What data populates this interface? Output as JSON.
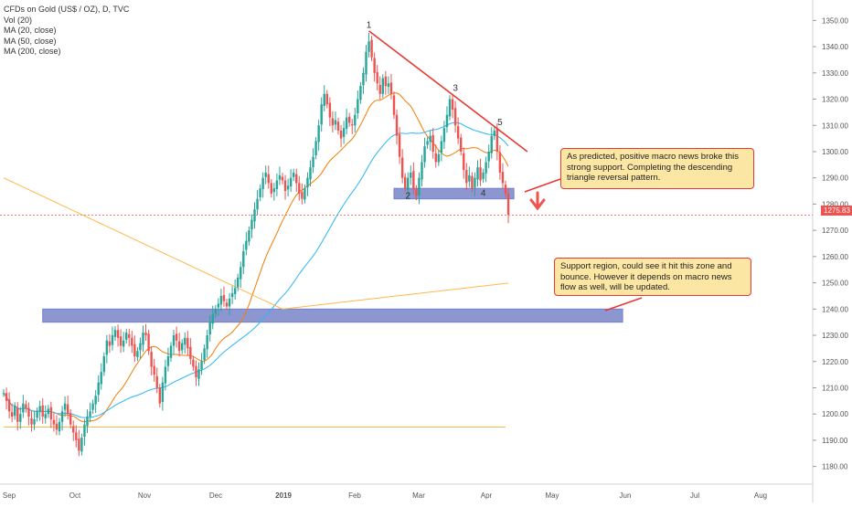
{
  "legend": {
    "symbol": "CFDs on Gold (US$ / OZ), D, TVC",
    "vol": "Vol (20)",
    "ma20": "MA (20, close)",
    "ma50": "MA (50, close)",
    "ma200": "MA (200, close)"
  },
  "notes": {
    "top": "As predicted, positive macro news broke this strong support. Completing the descending triangle reversal pattern.",
    "bottom": "Support region, could see it hit this zone and bounce. However it depends on macro news flow as well, will be updated."
  },
  "price_tag": "1275.83",
  "colors": {
    "up": "#26a69a",
    "down": "#ef5350",
    "ma20": "#f57c00",
    "ma50": "#29b6f6",
    "ma200": "#ffb74d",
    "zone": "#7986cb",
    "trendline": "#e53935",
    "note_bg": "#fce6a4"
  },
  "chart_data": {
    "type": "candlestick",
    "y_axis_ticks": [
      "1350.00",
      "1340.00",
      "1330.00",
      "1320.00",
      "1310.00",
      "1300.00",
      "1290.00",
      "1280.00",
      "1270.00",
      "1260.00",
      "1250.00",
      "1240.00",
      "1230.00",
      "1220.00",
      "1210.00",
      "1200.00",
      "1190.00",
      "1180.00"
    ],
    "ylim": [
      1175,
      1355
    ],
    "x_axis_labels": [
      "Sep",
      "Oct",
      "Nov",
      "Dec",
      "2019",
      "Feb",
      "Mar",
      "Apr",
      "May",
      "Jun",
      "Jul",
      "Aug"
    ],
    "last_price": 1275.83,
    "close_series": [
      1208,
      1205,
      1201,
      1199,
      1203,
      1197,
      1200,
      1204,
      1202,
      1199,
      1196,
      1198,
      1201,
      1203,
      1199,
      1200,
      1202,
      1198,
      1196,
      1194,
      1197,
      1201,
      1204,
      1200,
      1196,
      1193,
      1190,
      1186,
      1191,
      1196,
      1199,
      1201,
      1204,
      1207,
      1212,
      1216,
      1222,
      1228,
      1226,
      1230,
      1232,
      1229,
      1226,
      1228,
      1231,
      1229,
      1226,
      1222,
      1224,
      1227,
      1231,
      1230,
      1224,
      1218,
      1215,
      1210,
      1204,
      1212,
      1218,
      1222,
      1226,
      1230,
      1228,
      1224,
      1227,
      1229,
      1225,
      1221,
      1218,
      1214,
      1217,
      1220,
      1225,
      1230,
      1235,
      1238,
      1240,
      1242,
      1245,
      1243,
      1241,
      1244,
      1246,
      1248,
      1252,
      1256,
      1262,
      1266,
      1270,
      1274,
      1278,
      1282,
      1286,
      1290,
      1292,
      1288,
      1284,
      1286,
      1289,
      1291,
      1289,
      1285,
      1287,
      1290,
      1292,
      1288,
      1284,
      1282,
      1286,
      1290,
      1294,
      1298,
      1304,
      1310,
      1318,
      1322,
      1318,
      1313,
      1310,
      1312,
      1308,
      1305,
      1309,
      1313,
      1311,
      1310,
      1314,
      1320,
      1325,
      1330,
      1338,
      1342,
      1336,
      1330,
      1326,
      1322,
      1328,
      1325,
      1326,
      1322,
      1314,
      1306,
      1298,
      1290,
      1286,
      1290,
      1292,
      1286,
      1283,
      1290,
      1296,
      1302,
      1304,
      1306,
      1300,
      1296,
      1299,
      1304,
      1309,
      1314,
      1320,
      1316,
      1310,
      1305,
      1300,
      1293,
      1288,
      1291,
      1286,
      1290,
      1294,
      1289,
      1292,
      1296,
      1300,
      1306,
      1308,
      1300,
      1292,
      1288,
      1284,
      1276
    ],
    "moving_averages": [
      {
        "name": "MA (20, close)"
      },
      {
        "name": "MA (50, close)"
      },
      {
        "name": "MA (200, close)"
      }
    ],
    "annotations": {
      "wave_labels": [
        {
          "text": "1",
          "x_index": 131,
          "y": 1345
        },
        {
          "text": "2",
          "x_index": 145,
          "y": 1280
        },
        {
          "text": "3",
          "x_index": 162,
          "y": 1321
        },
        {
          "text": "4",
          "x_index": 172,
          "y": 1281
        },
        {
          "text": "5",
          "x_index": 178,
          "y": 1308
        }
      ],
      "support_zones": [
        {
          "y_from": 1282,
          "y_to": 1286,
          "x_from_index": 140,
          "x_to_index": 183
        },
        {
          "y_from": 1235,
          "y_to": 1240,
          "x_from_index": 14,
          "x_to_index": 222
        }
      ],
      "horizontal_line": {
        "y": 1195,
        "x_from_index": 0,
        "x_to_index": 180
      }
    }
  }
}
